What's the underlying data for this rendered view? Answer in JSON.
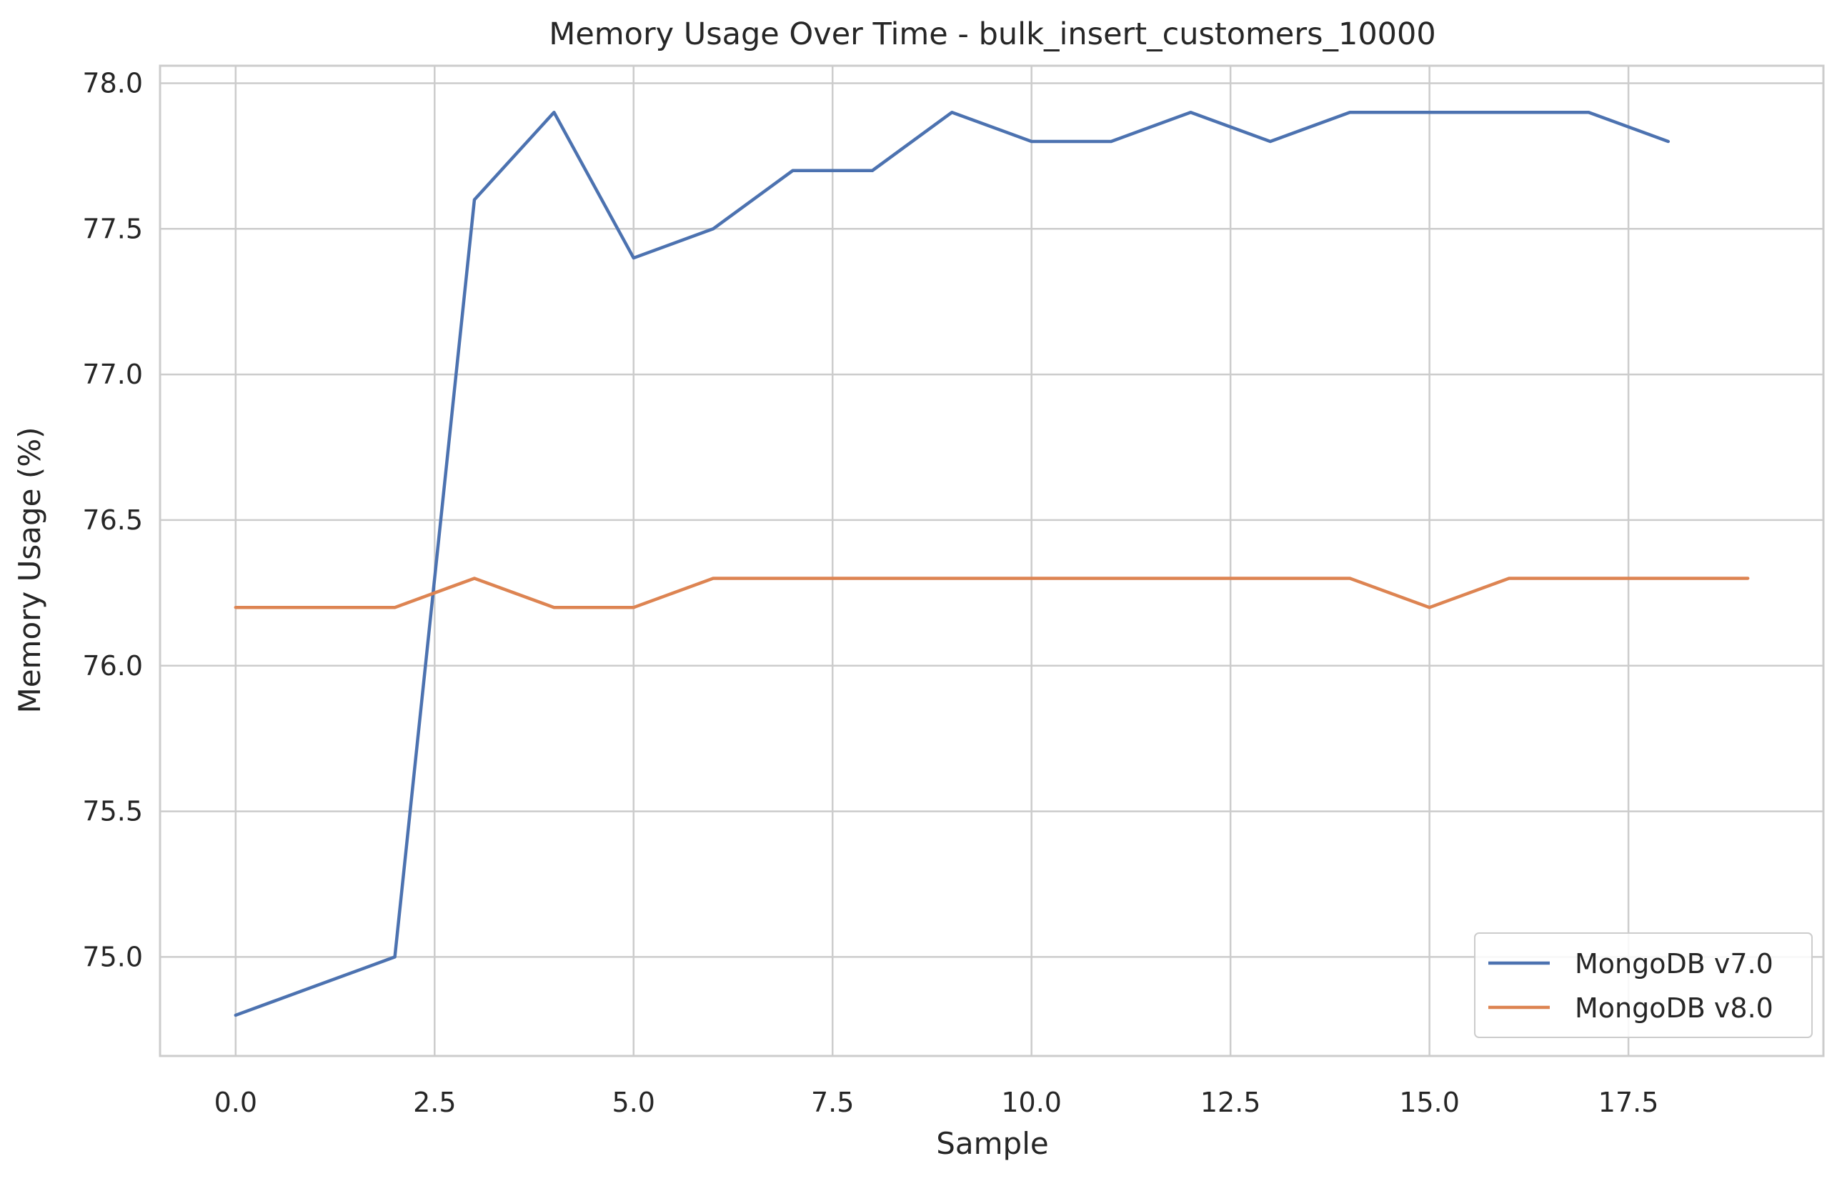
{
  "chart_data": {
    "type": "line",
    "title": "Memory Usage Over Time - bulk_insert_customers_10000",
    "xlabel": "Sample",
    "ylabel": "Memory Usage (%)",
    "xlim": [
      -0.95,
      19.95
    ],
    "ylim": [
      74.66,
      78.06
    ],
    "x_ticks": [
      0.0,
      2.5,
      5.0,
      7.5,
      10.0,
      12.5,
      15.0,
      17.5
    ],
    "x_tick_labels": [
      "0.0",
      "2.5",
      "5.0",
      "7.5",
      "10.0",
      "12.5",
      "15.0",
      "17.5"
    ],
    "y_ticks": [
      75.0,
      75.5,
      76.0,
      76.5,
      77.0,
      77.5,
      78.0
    ],
    "y_tick_labels": [
      "75.0",
      "75.5",
      "76.0",
      "76.5",
      "77.0",
      "77.5",
      "78.0"
    ],
    "grid": true,
    "legend_position": "lower-right",
    "series": [
      {
        "name": "MongoDB v7.0",
        "color": "#4c72b0",
        "x": [
          0,
          1,
          2,
          3,
          4,
          5,
          6,
          7,
          8,
          9,
          10,
          11,
          12,
          13,
          14,
          15,
          16,
          17,
          18
        ],
        "values": [
          74.8,
          74.9,
          75.0,
          77.6,
          77.9,
          77.4,
          77.5,
          77.7,
          77.7,
          77.9,
          77.8,
          77.8,
          77.9,
          77.8,
          77.9,
          77.9,
          77.9,
          77.9,
          77.8
        ]
      },
      {
        "name": "MongoDB v8.0",
        "color": "#dd8452",
        "x": [
          0,
          1,
          2,
          3,
          4,
          5,
          6,
          7,
          8,
          9,
          10,
          11,
          12,
          13,
          14,
          15,
          16,
          17,
          18,
          19
        ],
        "values": [
          76.2,
          76.2,
          76.2,
          76.3,
          76.2,
          76.2,
          76.3,
          76.3,
          76.3,
          76.3,
          76.3,
          76.3,
          76.3,
          76.3,
          76.3,
          76.2,
          76.3,
          76.3,
          76.3,
          76.3
        ]
      }
    ]
  }
}
